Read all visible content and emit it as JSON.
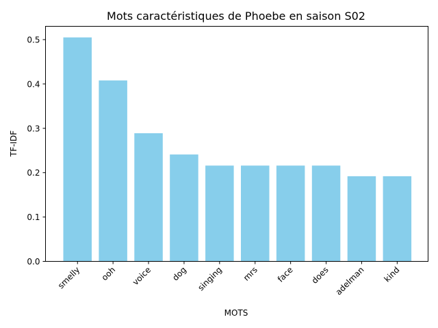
{
  "chart_data": {
    "type": "bar",
    "title": "Mots caractéristiques de Phoebe en saison S02",
    "xlabel": "MOTS",
    "ylabel": "TF-IDF",
    "categories": [
      "smelly",
      "ooh",
      "voice",
      "dog",
      "singing",
      "mrs",
      "face",
      "does",
      "adelman",
      "kind"
    ],
    "values": [
      0.505,
      0.408,
      0.289,
      0.241,
      0.216,
      0.216,
      0.216,
      0.216,
      0.192,
      0.192
    ],
    "ylim": [
      0,
      0.53
    ],
    "yticks": [
      "0.0",
      "0.1",
      "0.2",
      "0.3",
      "0.4",
      "0.5"
    ],
    "bar_color": "#87ceeb",
    "grid": false,
    "legend": "none"
  }
}
